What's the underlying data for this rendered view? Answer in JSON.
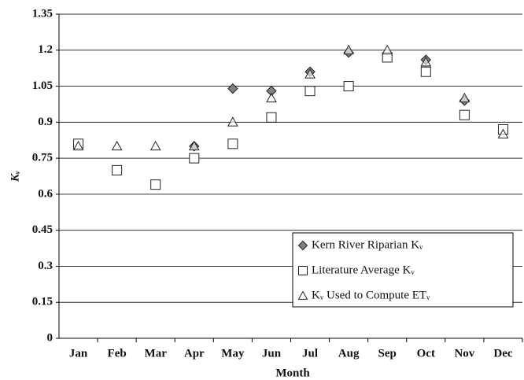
{
  "chart_data": {
    "type": "scatter",
    "x_label": "Month",
    "y_label": "Kᵥ",
    "categories": [
      "Jan",
      "Feb",
      "Mar",
      "Apr",
      "May",
      "Jun",
      "Jul",
      "Aug",
      "Sep",
      "Oct",
      "Nov",
      "Dec"
    ],
    "series": [
      {
        "name": "Kern River Riparian Kᵥ",
        "color": "#808080",
        "marker": "diamond",
        "values": [
          null,
          null,
          null,
          0.8,
          1.04,
          1.03,
          1.11,
          1.19,
          null,
          1.16,
          0.99,
          null
        ]
      },
      {
        "name": "Literature Average Kᵥ",
        "color": "#ffffff",
        "marker": "square",
        "values": [
          0.81,
          0.7,
          0.64,
          0.75,
          0.81,
          0.92,
          1.03,
          1.05,
          1.17,
          1.11,
          0.93,
          0.87
        ]
      },
      {
        "name": "Kᵥ  Used to Compute ETᵥ",
        "color": "#ffffff",
        "marker": "triangle",
        "values": [
          0.8,
          0.8,
          0.8,
          0.8,
          0.9,
          1.0,
          1.1,
          1.2,
          1.2,
          1.15,
          1.0,
          0.85
        ]
      }
    ],
    "ylim": [
      0,
      1.35
    ],
    "yticks": [
      0,
      0.15,
      0.3,
      0.45,
      0.6,
      0.75,
      0.9,
      1.05,
      1.2,
      1.35
    ],
    "grid": true,
    "legend": "lower right"
  }
}
